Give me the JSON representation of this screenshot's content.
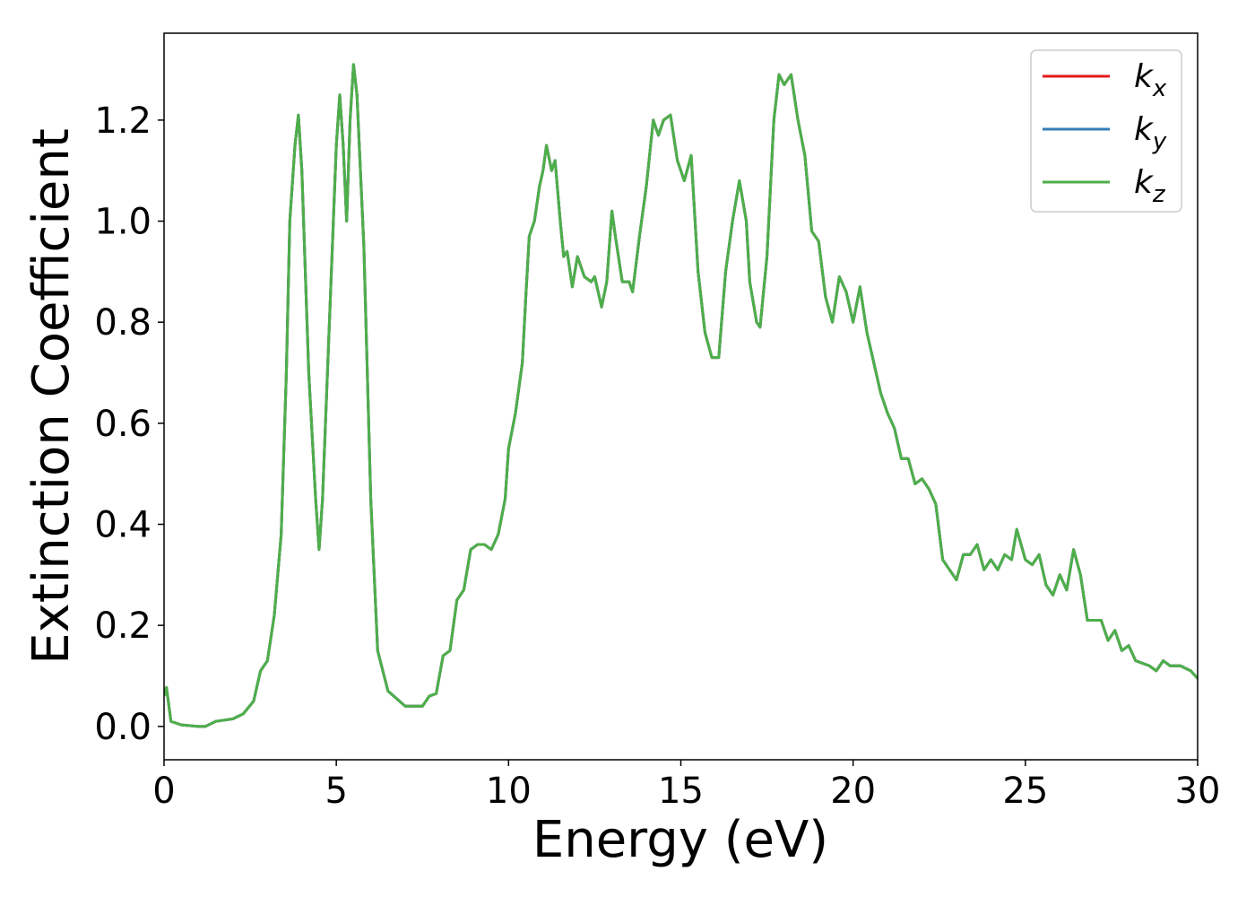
{
  "chart_data": {
    "type": "line",
    "xlabel": "Energy (eV)",
    "ylabel": "Extinction Coefficient",
    "x": [
      0,
      0.07,
      0.2,
      0.5,
      1.0,
      1.2,
      1.5,
      2.0,
      2.3,
      2.6,
      2.8,
      3.0,
      3.2,
      3.4,
      3.55,
      3.65,
      3.8,
      3.9,
      4.0,
      4.2,
      4.4,
      4.5,
      4.6,
      4.8,
      5.0,
      5.1,
      5.2,
      5.3,
      5.4,
      5.5,
      5.6,
      5.8,
      6.0,
      6.2,
      6.5,
      7.0,
      7.5,
      7.7,
      7.9,
      8.1,
      8.3,
      8.5,
      8.7,
      8.9,
      9.1,
      9.3,
      9.5,
      9.7,
      9.9,
      10.0,
      10.2,
      10.4,
      10.5,
      10.6,
      10.75,
      10.9,
      11.0,
      11.1,
      11.25,
      11.35,
      11.5,
      11.6,
      11.7,
      11.85,
      12.0,
      12.2,
      12.4,
      12.5,
      12.7,
      12.85,
      13.0,
      13.1,
      13.3,
      13.5,
      13.6,
      13.8,
      14.0,
      14.2,
      14.35,
      14.5,
      14.7,
      14.9,
      15.1,
      15.3,
      15.5,
      15.7,
      15.9,
      16.1,
      16.3,
      16.5,
      16.7,
      16.9,
      17.0,
      17.2,
      17.3,
      17.5,
      17.7,
      17.85,
      18.0,
      18.2,
      18.4,
      18.6,
      18.8,
      19.0,
      19.2,
      19.4,
      19.6,
      19.8,
      20.0,
      20.2,
      20.4,
      20.6,
      20.8,
      21.0,
      21.2,
      21.4,
      21.6,
      21.8,
      22.0,
      22.2,
      22.4,
      22.6,
      22.8,
      23.0,
      23.2,
      23.4,
      23.6,
      23.8,
      24.0,
      24.2,
      24.4,
      24.6,
      24.75,
      25.0,
      25.2,
      25.4,
      25.6,
      25.8,
      26.0,
      26.2,
      26.4,
      26.6,
      26.8,
      27.0,
      27.2,
      27.4,
      27.6,
      27.8,
      28.0,
      28.2,
      28.6,
      28.8,
      29.0,
      29.2,
      29.5,
      29.8,
      30.0
    ],
    "series": [
      {
        "name": "kx",
        "color": "#e41a1c",
        "values": [
          0.06,
          0.077,
          0.01,
          0.003,
          0.0,
          0.0,
          0.01,
          0.015,
          0.025,
          0.05,
          0.11,
          0.13,
          0.22,
          0.38,
          0.7,
          1.0,
          1.15,
          1.21,
          1.1,
          0.7,
          0.45,
          0.35,
          0.45,
          0.8,
          1.15,
          1.25,
          1.15,
          1.0,
          1.2,
          1.31,
          1.25,
          0.95,
          0.45,
          0.15,
          0.07,
          0.04,
          0.04,
          0.06,
          0.065,
          0.14,
          0.15,
          0.25,
          0.27,
          0.35,
          0.36,
          0.36,
          0.35,
          0.38,
          0.45,
          0.55,
          0.62,
          0.72,
          0.85,
          0.97,
          1.0,
          1.07,
          1.1,
          1.15,
          1.1,
          1.12,
          1.0,
          0.93,
          0.94,
          0.87,
          0.93,
          0.89,
          0.88,
          0.89,
          0.83,
          0.88,
          1.02,
          0.97,
          0.88,
          0.88,
          0.86,
          0.97,
          1.07,
          1.2,
          1.17,
          1.2,
          1.21,
          1.12,
          1.08,
          1.13,
          0.9,
          0.78,
          0.73,
          0.73,
          0.9,
          1.0,
          1.08,
          1.0,
          0.88,
          0.8,
          0.79,
          0.93,
          1.2,
          1.29,
          1.27,
          1.29,
          1.2,
          1.13,
          0.98,
          0.96,
          0.85,
          0.8,
          0.89,
          0.86,
          0.8,
          0.87,
          0.78,
          0.72,
          0.66,
          0.62,
          0.59,
          0.53,
          0.53,
          0.48,
          0.49,
          0.47,
          0.44,
          0.33,
          0.31,
          0.29,
          0.34,
          0.34,
          0.36,
          0.31,
          0.33,
          0.31,
          0.34,
          0.33,
          0.39,
          0.33,
          0.32,
          0.34,
          0.28,
          0.26,
          0.3,
          0.27,
          0.35,
          0.3,
          0.21,
          0.21,
          0.21,
          0.17,
          0.19,
          0.15,
          0.16,
          0.13,
          0.12,
          0.11,
          0.13,
          0.12,
          0.12,
          0.11,
          0.095
        ]
      },
      {
        "name": "ky",
        "color": "#377eb8",
        "values": [
          0.06,
          0.077,
          0.01,
          0.003,
          0.0,
          0.0,
          0.01,
          0.015,
          0.025,
          0.05,
          0.11,
          0.13,
          0.22,
          0.38,
          0.7,
          1.0,
          1.15,
          1.21,
          1.1,
          0.7,
          0.45,
          0.35,
          0.45,
          0.8,
          1.15,
          1.25,
          1.15,
          1.0,
          1.2,
          1.31,
          1.25,
          0.95,
          0.45,
          0.15,
          0.07,
          0.04,
          0.04,
          0.06,
          0.065,
          0.14,
          0.15,
          0.25,
          0.27,
          0.35,
          0.36,
          0.36,
          0.35,
          0.38,
          0.45,
          0.55,
          0.62,
          0.72,
          0.85,
          0.97,
          1.0,
          1.07,
          1.1,
          1.15,
          1.1,
          1.12,
          1.0,
          0.93,
          0.94,
          0.87,
          0.93,
          0.89,
          0.88,
          0.89,
          0.83,
          0.88,
          1.02,
          0.97,
          0.88,
          0.88,
          0.86,
          0.97,
          1.07,
          1.2,
          1.17,
          1.2,
          1.21,
          1.12,
          1.08,
          1.13,
          0.9,
          0.78,
          0.73,
          0.73,
          0.9,
          1.0,
          1.08,
          1.0,
          0.88,
          0.8,
          0.79,
          0.93,
          1.2,
          1.29,
          1.27,
          1.29,
          1.2,
          1.13,
          0.98,
          0.96,
          0.85,
          0.8,
          0.89,
          0.86,
          0.8,
          0.87,
          0.78,
          0.72,
          0.66,
          0.62,
          0.59,
          0.53,
          0.53,
          0.48,
          0.49,
          0.47,
          0.44,
          0.33,
          0.31,
          0.29,
          0.34,
          0.34,
          0.36,
          0.31,
          0.33,
          0.31,
          0.34,
          0.33,
          0.39,
          0.33,
          0.32,
          0.34,
          0.28,
          0.26,
          0.3,
          0.27,
          0.35,
          0.3,
          0.21,
          0.21,
          0.21,
          0.17,
          0.19,
          0.15,
          0.16,
          0.13,
          0.12,
          0.11,
          0.13,
          0.12,
          0.12,
          0.11,
          0.095
        ]
      },
      {
        "name": "kz",
        "color": "#4daf4a",
        "values": [
          0.06,
          0.077,
          0.01,
          0.003,
          0.0,
          0.0,
          0.01,
          0.015,
          0.025,
          0.05,
          0.11,
          0.13,
          0.22,
          0.38,
          0.7,
          1.0,
          1.15,
          1.21,
          1.1,
          0.7,
          0.45,
          0.35,
          0.45,
          0.8,
          1.15,
          1.25,
          1.15,
          1.0,
          1.2,
          1.31,
          1.25,
          0.95,
          0.45,
          0.15,
          0.07,
          0.04,
          0.04,
          0.06,
          0.065,
          0.14,
          0.15,
          0.25,
          0.27,
          0.35,
          0.36,
          0.36,
          0.35,
          0.38,
          0.45,
          0.55,
          0.62,
          0.72,
          0.85,
          0.97,
          1.0,
          1.07,
          1.1,
          1.15,
          1.1,
          1.12,
          1.0,
          0.93,
          0.94,
          0.87,
          0.93,
          0.89,
          0.88,
          0.89,
          0.83,
          0.88,
          1.02,
          0.97,
          0.88,
          0.88,
          0.86,
          0.97,
          1.07,
          1.2,
          1.17,
          1.2,
          1.21,
          1.12,
          1.08,
          1.13,
          0.9,
          0.78,
          0.73,
          0.73,
          0.9,
          1.0,
          1.08,
          1.0,
          0.88,
          0.8,
          0.79,
          0.93,
          1.2,
          1.29,
          1.27,
          1.29,
          1.2,
          1.13,
          0.98,
          0.96,
          0.85,
          0.8,
          0.89,
          0.86,
          0.8,
          0.87,
          0.78,
          0.72,
          0.66,
          0.62,
          0.59,
          0.53,
          0.53,
          0.48,
          0.49,
          0.47,
          0.44,
          0.33,
          0.31,
          0.29,
          0.34,
          0.34,
          0.36,
          0.31,
          0.33,
          0.31,
          0.34,
          0.33,
          0.39,
          0.33,
          0.32,
          0.34,
          0.28,
          0.26,
          0.3,
          0.27,
          0.35,
          0.3,
          0.21,
          0.21,
          0.21,
          0.17,
          0.19,
          0.15,
          0.16,
          0.13,
          0.12,
          0.11,
          0.13,
          0.12,
          0.12,
          0.11,
          0.095
        ]
      }
    ],
    "xlim": [
      0,
      30
    ],
    "xticks": [
      0,
      5,
      10,
      15,
      20,
      25,
      30
    ],
    "ylim": [
      -0.066,
      1.372
    ],
    "yticks": [
      {
        "value": 0,
        "label": "0.0"
      },
      {
        "value": 0.2,
        "label": "0.2"
      },
      {
        "value": 0.4,
        "label": "0.4"
      },
      {
        "value": 0.6,
        "label": "0.6"
      },
      {
        "value": 0.8,
        "label": "0.8"
      },
      {
        "value": 1.0,
        "label": "1.0"
      },
      {
        "value": 1.2,
        "label": "1.2"
      }
    ],
    "grid": false,
    "legend": "upper right"
  }
}
